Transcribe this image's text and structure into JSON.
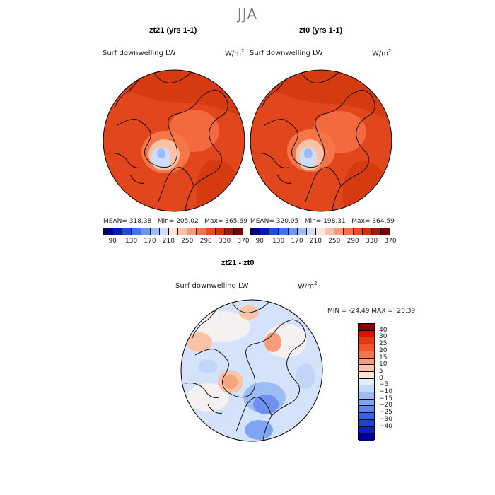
{
  "season": "JJA",
  "panels": [
    {
      "title": "zt21 (yrs 1-1)",
      "variable": "Surf downwelling LW",
      "units_base": "W/m",
      "units_exp": "2",
      "stats": {
        "mean": "MEAN= 318.38",
        "min": "Min= 205.02",
        "max": "Max= 365.69"
      }
    },
    {
      "title": "zt0 (yrs 1-1)",
      "variable": "Surf downwelling LW",
      "units_base": "W/m",
      "units_exp": "2",
      "stats": {
        "mean": "MEAN= 320.05",
        "min": "Min= 198.31",
        "max": "Max= 364.59"
      }
    }
  ],
  "diff_panel": {
    "title": "zt21 - zt0",
    "variable": "Surf downwelling LW",
    "units_base": "W/m",
    "units_exp": "2",
    "minmax": "MIN = -24.49 MAX =  20.39"
  },
  "colorbar_abs": {
    "colors": [
      "#00007f",
      "#0019bf",
      "#1a4ce0",
      "#3d74f0",
      "#6c98f5",
      "#9fbcf8",
      "#cfdcfa",
      "#fbe6dc",
      "#fcc2a8",
      "#f99a77",
      "#f5704c",
      "#ec4a20",
      "#d33100",
      "#a81800",
      "#7a0000"
    ],
    "tick_labels": [
      "90",
      "130",
      "170",
      "210",
      "250",
      "290",
      "330",
      "370"
    ]
  },
  "colorbar_diff": {
    "colors": [
      "#8b0000",
      "#c51b00",
      "#e13a10",
      "#f25528",
      "#f6764a",
      "#f89c7a",
      "#fbc2a6",
      "#fde4d6",
      "#e2ecfb",
      "#c3d6fa",
      "#9cbcf6",
      "#7ea4f2",
      "#5a86ee",
      "#3b62e6",
      "#1f41d6",
      "#0a22b8",
      "#00008b"
    ],
    "tick_labels": [
      "40",
      "30",
      "25",
      "20",
      "15",
      "10",
      "5",
      "0",
      "−5",
      "−10",
      "−15",
      "−20",
      "−25",
      "−30",
      "−40"
    ]
  },
  "colors": {
    "abs_base": "#e2461c",
    "abs_warm_dark": "#d63a10",
    "abs_light": "#f6764a",
    "abs_pale": "#fbc2a6",
    "abs_cold": "#cfdcfa",
    "diff_base": "#d4e2fa",
    "diff_neutral": "#f4f1f0",
    "diff_pos": "#f7a37e",
    "diff_neg": "#6e90ee",
    "coast": "#111111"
  }
}
